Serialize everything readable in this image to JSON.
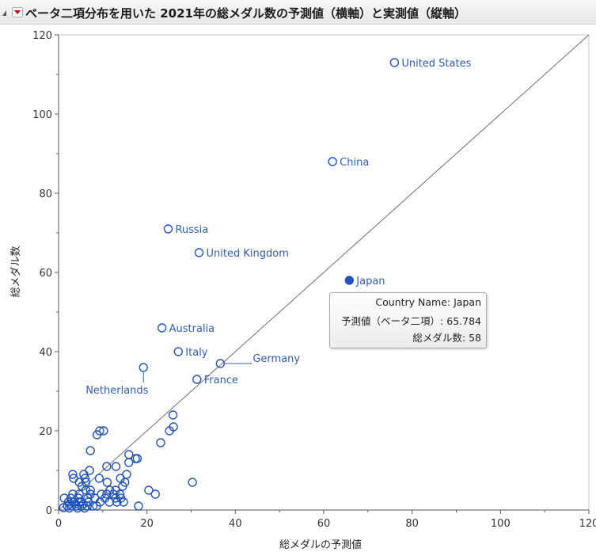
{
  "title": "ベータ二項分布を用いた 2021年の総メダル数の予測値（横軸）と実測値（縦軸）",
  "tooltip": {
    "row1_label": "Country Name:",
    "row1_value": "Japan",
    "row2_label": "予測値（ベータ二項）:",
    "row2_value": "65.784",
    "row3_label": "総メダル数:",
    "row3_value": "58"
  },
  "colors": {
    "marker": "#2255bb",
    "label": "#2f5db3",
    "axis": "#555555",
    "diagonal": "#707070",
    "title_bar": "#ececec"
  },
  "chart_data": {
    "type": "scatter",
    "title": "ベータ二項分布を用いた 2021年の総メダル数の予測値（横軸）と実測値（縦軸）",
    "xlabel": "総メダルの予測値",
    "ylabel": "総メダル数",
    "xlim": [
      0,
      120
    ],
    "ylim": [
      0,
      120
    ],
    "x_ticks": [
      0,
      20,
      40,
      60,
      80,
      100,
      120
    ],
    "y_ticks": [
      0,
      20,
      40,
      60,
      80,
      100,
      120
    ],
    "reference_line": "y = x",
    "selected": "Japan",
    "labeled_points": [
      {
        "name": "United States",
        "x": 76,
        "y": 113
      },
      {
        "name": "China",
        "x": 62,
        "y": 88
      },
      {
        "name": "Russia",
        "x": 24.8,
        "y": 71
      },
      {
        "name": "United Kingdom",
        "x": 31.8,
        "y": 65
      },
      {
        "name": "Japan",
        "x": 65.784,
        "y": 58
      },
      {
        "name": "Australia",
        "x": 23.4,
        "y": 46
      },
      {
        "name": "Italy",
        "x": 27.1,
        "y": 40
      },
      {
        "name": "Germany",
        "x": 36.6,
        "y": 37
      },
      {
        "name": "France",
        "x": 31.3,
        "y": 33
      },
      {
        "name": "Netherlands",
        "x": 19.2,
        "y": 36
      }
    ],
    "points": [
      [
        25.9,
        24
      ],
      [
        26,
        21
      ],
      [
        25.1,
        20
      ],
      [
        23.1,
        17
      ],
      [
        8.7,
        19
      ],
      [
        9.3,
        20
      ],
      [
        10.2,
        20
      ],
      [
        7.2,
        15
      ],
      [
        15.9,
        14
      ],
      [
        17.4,
        13
      ],
      [
        17.8,
        13
      ],
      [
        15.9,
        12
      ],
      [
        10.9,
        11
      ],
      [
        13,
        11
      ],
      [
        15.4,
        9
      ],
      [
        3.2,
        9
      ],
      [
        3.4,
        8
      ],
      [
        5.7,
        9
      ],
      [
        6,
        8
      ],
      [
        7,
        10
      ],
      [
        9.2,
        8
      ],
      [
        4.7,
        7
      ],
      [
        6.2,
        7
      ],
      [
        11,
        7
      ],
      [
        14,
        8
      ],
      [
        15,
        7
      ],
      [
        14.5,
        6
      ],
      [
        5.3,
        6
      ],
      [
        6.2,
        5
      ],
      [
        7.2,
        5
      ],
      [
        11.6,
        5
      ],
      [
        12.9,
        5
      ],
      [
        20.4,
        5
      ],
      [
        21.9,
        4
      ],
      [
        30.3,
        7
      ],
      [
        3.2,
        4
      ],
      [
        4.7,
        4
      ],
      [
        7.2,
        4
      ],
      [
        9.7,
        4
      ],
      [
        10.9,
        4
      ],
      [
        12.4,
        4
      ],
      [
        13.9,
        4
      ],
      [
        1.3,
        3
      ],
      [
        2.8,
        3
      ],
      [
        4.5,
        3
      ],
      [
        6.6,
        3
      ],
      [
        8.2,
        3
      ],
      [
        10.5,
        3
      ],
      [
        12.9,
        3
      ],
      [
        14.1,
        3
      ],
      [
        2.2,
        2
      ],
      [
        3.5,
        2
      ],
      [
        5.1,
        2
      ],
      [
        6.7,
        2
      ],
      [
        9.4,
        2
      ],
      [
        11.5,
        2
      ],
      [
        13.2,
        2
      ],
      [
        14.7,
        2
      ],
      [
        2,
        1
      ],
      [
        3,
        1
      ],
      [
        4,
        1
      ],
      [
        5.2,
        1
      ],
      [
        6.5,
        1
      ],
      [
        7.8,
        1
      ],
      [
        8.6,
        1
      ],
      [
        18.1,
        1
      ],
      [
        2.6,
        1.5
      ],
      [
        3.8,
        1.5
      ],
      [
        4.6,
        2
      ],
      [
        5.6,
        1.5
      ],
      [
        2.4,
        0.5
      ],
      [
        4.3,
        0.5
      ],
      [
        5.9,
        0.5
      ],
      [
        1.1,
        0.6
      ]
    ]
  }
}
